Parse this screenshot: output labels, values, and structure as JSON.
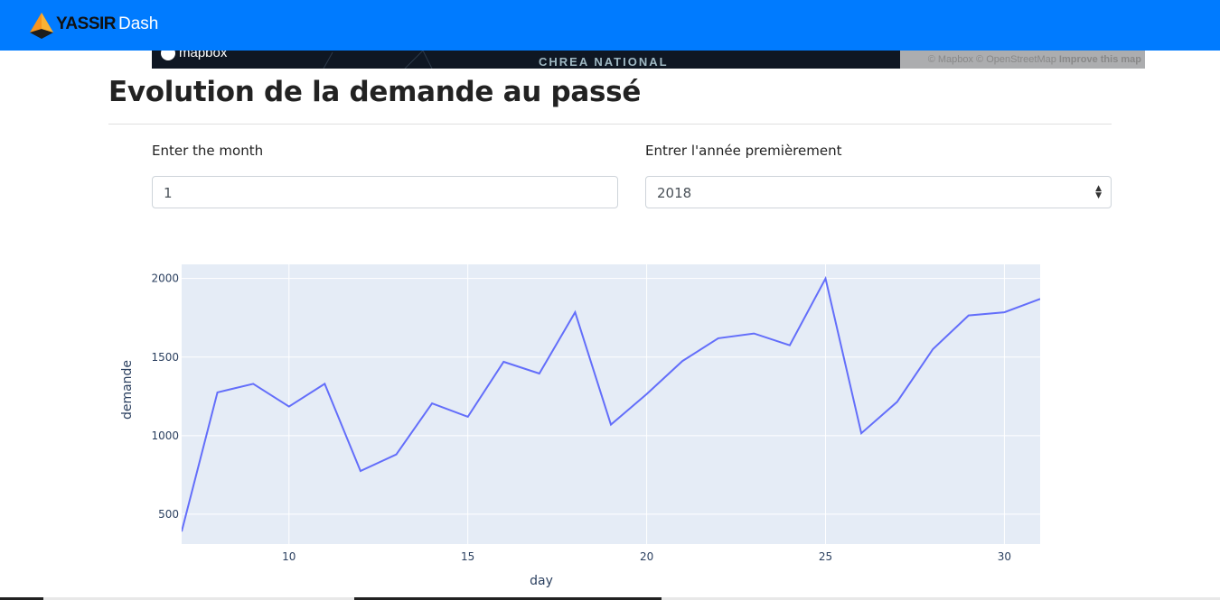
{
  "navbar": {
    "brand_name": "YASSIR",
    "brand_suffix": "Dash",
    "color": "#007bff"
  },
  "map": {
    "logo_text": "mapbox",
    "place_label": "CHREA NATIONAL",
    "attribution": "© Mapbox © OpenStreetMap",
    "improve_link": "Improve this map"
  },
  "section": {
    "title": "Evolution de la demande au passé"
  },
  "form": {
    "month_label": "Enter the month",
    "month_value": "1",
    "year_label": "Entrer l'année premièrement",
    "year_value": "2018"
  },
  "chart_data": {
    "type": "line",
    "xlabel": "day",
    "ylabel": "demande",
    "xlim": [
      7,
      31
    ],
    "ylim": [
      310,
      2090
    ],
    "xticks": [
      10,
      15,
      20,
      25,
      30
    ],
    "yticks": [
      500,
      1000,
      1500,
      2000
    ],
    "grid": true,
    "line_color": "#636efa",
    "plot_bg": "#e5ecf6",
    "series": [
      {
        "x": [
          7,
          8,
          9,
          10,
          11,
          12,
          13,
          14,
          15,
          16,
          17,
          18,
          19,
          20,
          21,
          22,
          23,
          24,
          25,
          26,
          27,
          28,
          29,
          30,
          31
        ],
        "y": [
          390,
          1275,
          1330,
          1185,
          1330,
          775,
          880,
          1205,
          1120,
          1470,
          1395,
          1785,
          1070,
          1265,
          1475,
          1620,
          1650,
          1575,
          2000,
          1015,
          1215,
          1550,
          1765,
          1785,
          1870
        ]
      }
    ]
  }
}
